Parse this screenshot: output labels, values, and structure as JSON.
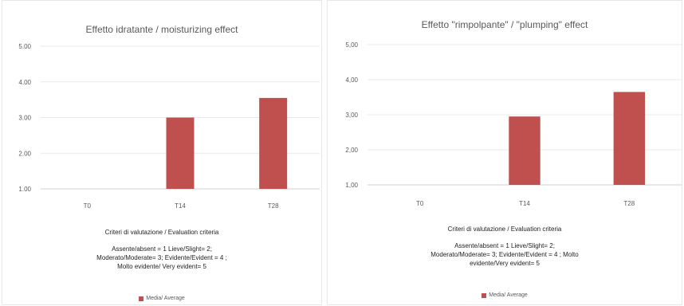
{
  "chart_data": [
    {
      "type": "bar",
      "title": "Effetto idratante / moisturizing effect",
      "categories": [
        "T0",
        "T14",
        "T28"
      ],
      "series": [
        {
          "name": "Media/ Average",
          "values": [
            1.0,
            3.0,
            3.55
          ]
        }
      ],
      "ylim": [
        1,
        5
      ],
      "yticks": [
        "1.00",
        "2.00",
        "3.00",
        "4.00",
        "5.00"
      ],
      "grid": true,
      "legend": "bottom",
      "color": "#c0504d",
      "criteria": {
        "heading": "Criteri di valutazione / Evaluation criteria",
        "lines": [
          "Assente/absent = 1  Lieve/Slight= 2;",
          "Moderato/Moderate= 3;  Evidente/Evident = 4 ;",
          "Molto evidente/ Very evident= 5"
        ]
      }
    },
    {
      "type": "bar",
      "title": "Effetto \"rimpolpante\" / \"plumping\" effect",
      "categories": [
        "T0",
        "T14",
        "T28"
      ],
      "series": [
        {
          "name": "Media/ Average",
          "values": [
            1.0,
            2.95,
            3.65
          ]
        }
      ],
      "ylim": [
        1,
        5
      ],
      "yticks": [
        "1,00",
        "2,00",
        "3,00",
        "4,00",
        "5,00"
      ],
      "grid": true,
      "legend": "bottom",
      "color": "#c0504d",
      "criteria": {
        "heading": "Criteri di valutazione  / Evaluation criteria",
        "lines": [
          "Assente/absent = 1  Lieve/Slight= 2;",
          "Moderato/Moderate= 3;  Evidente/Evident = 4 ; Molto",
          "evidente/Very evident= 5"
        ]
      }
    }
  ]
}
